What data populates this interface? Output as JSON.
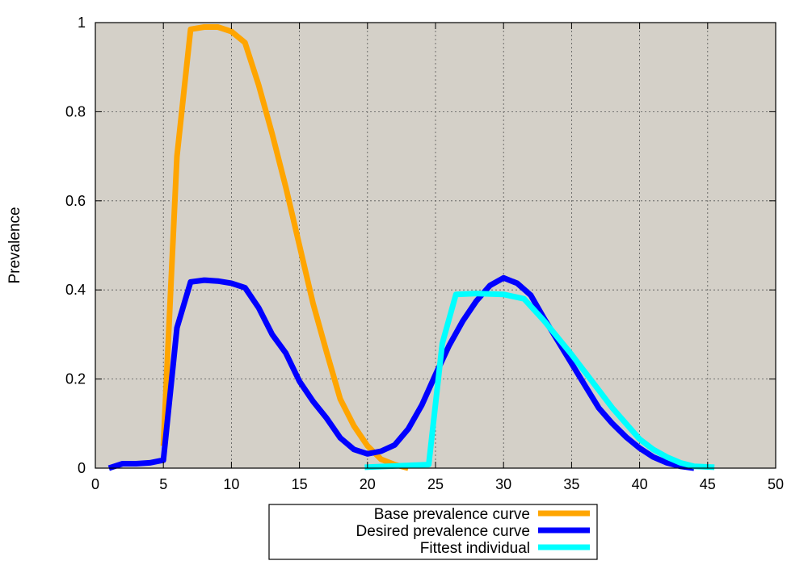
{
  "chart_data": {
    "type": "line",
    "title": "",
    "xlabel": "",
    "ylabel": "Prevalence",
    "xlim": [
      0,
      50
    ],
    "ylim": [
      0,
      1
    ],
    "xticks": [
      "0",
      "5",
      "10",
      "15",
      "20",
      "25",
      "30",
      "35",
      "40",
      "45",
      "50"
    ],
    "yticks": [
      "0",
      "0.2",
      "0.4",
      "0.6",
      "0.8",
      "1"
    ],
    "grid": true,
    "legend_position": "bottom-center",
    "plot_background": "#d4d0c8",
    "series": [
      {
        "name": "Base prevalence curve",
        "color": "#ffa500",
        "x": [
          5,
          6,
          7,
          8,
          9,
          10,
          11,
          12,
          13,
          14,
          15,
          16,
          17,
          18,
          19,
          20,
          21,
          22,
          23
        ],
        "y": [
          0.05,
          0.7,
          0.985,
          0.99,
          0.99,
          0.98,
          0.955,
          0.86,
          0.75,
          0.63,
          0.5,
          0.37,
          0.26,
          0.155,
          0.095,
          0.05,
          0.02,
          0.008,
          0.0
        ]
      },
      {
        "name": "Desired prevalence curve",
        "color": "#0000ff",
        "x": [
          1,
          2,
          3,
          4,
          5,
          6,
          7,
          8,
          9,
          10,
          11,
          12,
          13,
          14,
          15,
          16,
          17,
          18,
          19,
          20,
          21,
          22,
          23,
          24,
          25,
          26,
          27,
          28,
          29,
          30,
          31,
          32,
          33,
          34,
          35,
          36,
          37,
          38,
          39,
          40,
          41,
          42,
          43,
          44
        ],
        "y": [
          0.0,
          0.01,
          0.01,
          0.012,
          0.018,
          0.315,
          0.418,
          0.422,
          0.42,
          0.415,
          0.405,
          0.36,
          0.3,
          0.258,
          0.195,
          0.15,
          0.112,
          0.068,
          0.042,
          0.032,
          0.038,
          0.052,
          0.088,
          0.142,
          0.21,
          0.275,
          0.33,
          0.375,
          0.41,
          0.427,
          0.415,
          0.388,
          0.335,
          0.285,
          0.235,
          0.185,
          0.135,
          0.1,
          0.07,
          0.045,
          0.025,
          0.012,
          0.004,
          0.0
        ]
      },
      {
        "name": "Fittest individual",
        "color": "#00ffff",
        "x": [
          19.8,
          24.5,
          25.5,
          26.5,
          28,
          30,
          31.5,
          33,
          35,
          37,
          38,
          39,
          40,
          41,
          42,
          43,
          44,
          45.5
        ],
        "y": [
          0.002,
          0.008,
          0.28,
          0.39,
          0.392,
          0.39,
          0.38,
          0.33,
          0.255,
          0.175,
          0.135,
          0.1,
          0.065,
          0.042,
          0.025,
          0.012,
          0.004,
          0.002
        ]
      }
    ]
  }
}
